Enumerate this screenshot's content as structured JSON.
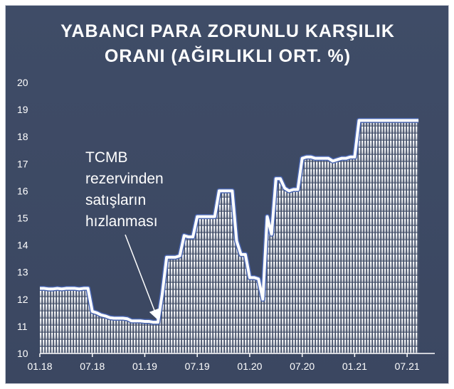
{
  "chart_data": {
    "type": "area",
    "title_lines": [
      "YABANCI PARA ZORUNLU KARŞILIK",
      "ORANI (AĞIRLIKLI ORT. %)"
    ],
    "xlabel": "",
    "ylabel": "",
    "x_tick_labels": [
      "01.18",
      "07.18",
      "01.19",
      "07.19",
      "01.20",
      "07.20",
      "01.21",
      "07.21"
    ],
    "y_tick_labels": [
      "10",
      "11",
      "12",
      "13",
      "14",
      "15",
      "16",
      "17",
      "18",
      "19",
      "20"
    ],
    "ylim": [
      10,
      20
    ],
    "grid": false,
    "legend": "none",
    "colors": {
      "background": "#3e4a65",
      "line": "#ffffff",
      "line_outline": "#4a66b0",
      "fill_top": "#ffffff"
    },
    "annotation": {
      "lines": [
        "TCMB",
        "rezervinden",
        "satışların",
        "hızlanması"
      ],
      "arrow_points_to": {
        "x": 13.6,
        "y": 11.2
      }
    },
    "series": [
      {
        "x": [
          0,
          0.5,
          1,
          1.5,
          2,
          2.5,
          3,
          3.5,
          4,
          4.5,
          5,
          5.5,
          6,
          6.5,
          7,
          7.5,
          8,
          8.5,
          9,
          9.5,
          10,
          10.5,
          11,
          11.5,
          12,
          12.5,
          13,
          13.5,
          14,
          14.5,
          15,
          15.5,
          16,
          16.5,
          17,
          17.5,
          18,
          18.5,
          19,
          19.5,
          20,
          20.5,
          21,
          21.5,
          22,
          22.5,
          23,
          23.5,
          24,
          24.5,
          25,
          25.5,
          26,
          26.5,
          27,
          27.5,
          28,
          28.5,
          29,
          29.5,
          30,
          30.5,
          31,
          31.5,
          32,
          32.5,
          33,
          33.5,
          34,
          34.5,
          35,
          35.5,
          36,
          36.5,
          37,
          37.5,
          38,
          38.5,
          39,
          39.5,
          40,
          40.5,
          41,
          41.5,
          42,
          42.5,
          43,
          43.5,
          44
        ],
        "values": [
          12.4,
          12.4,
          12.38,
          12.38,
          12.4,
          12.38,
          12.4,
          12.4,
          12.4,
          12.38,
          12.4,
          12.4,
          11.55,
          11.5,
          11.42,
          11.38,
          11.32,
          11.3,
          11.3,
          11.3,
          11.28,
          11.2,
          11.2,
          11.2,
          11.18,
          11.18,
          11.15,
          11.15,
          12.2,
          13.55,
          13.55,
          13.55,
          13.6,
          14.35,
          14.3,
          14.3,
          15.05,
          15.05,
          15.05,
          15.05,
          15.05,
          16.0,
          16.0,
          16.0,
          16.0,
          14.15,
          13.65,
          13.65,
          12.8,
          12.8,
          12.75,
          12.0,
          15.05,
          14.4,
          16.45,
          16.45,
          16.1,
          16.0,
          16.05,
          16.05,
          17.2,
          17.25,
          17.25,
          17.2,
          17.2,
          17.2,
          17.2,
          17.1,
          17.15,
          17.2,
          17.2,
          17.25,
          17.25,
          18.6,
          18.6,
          18.6,
          18.6,
          18.6,
          18.6,
          18.6,
          18.6,
          18.6,
          18.6,
          18.6,
          18.6,
          18.6,
          18.6,
          18.6,
          18.6
        ],
        "visible_until_x": 43.3
      }
    ]
  }
}
